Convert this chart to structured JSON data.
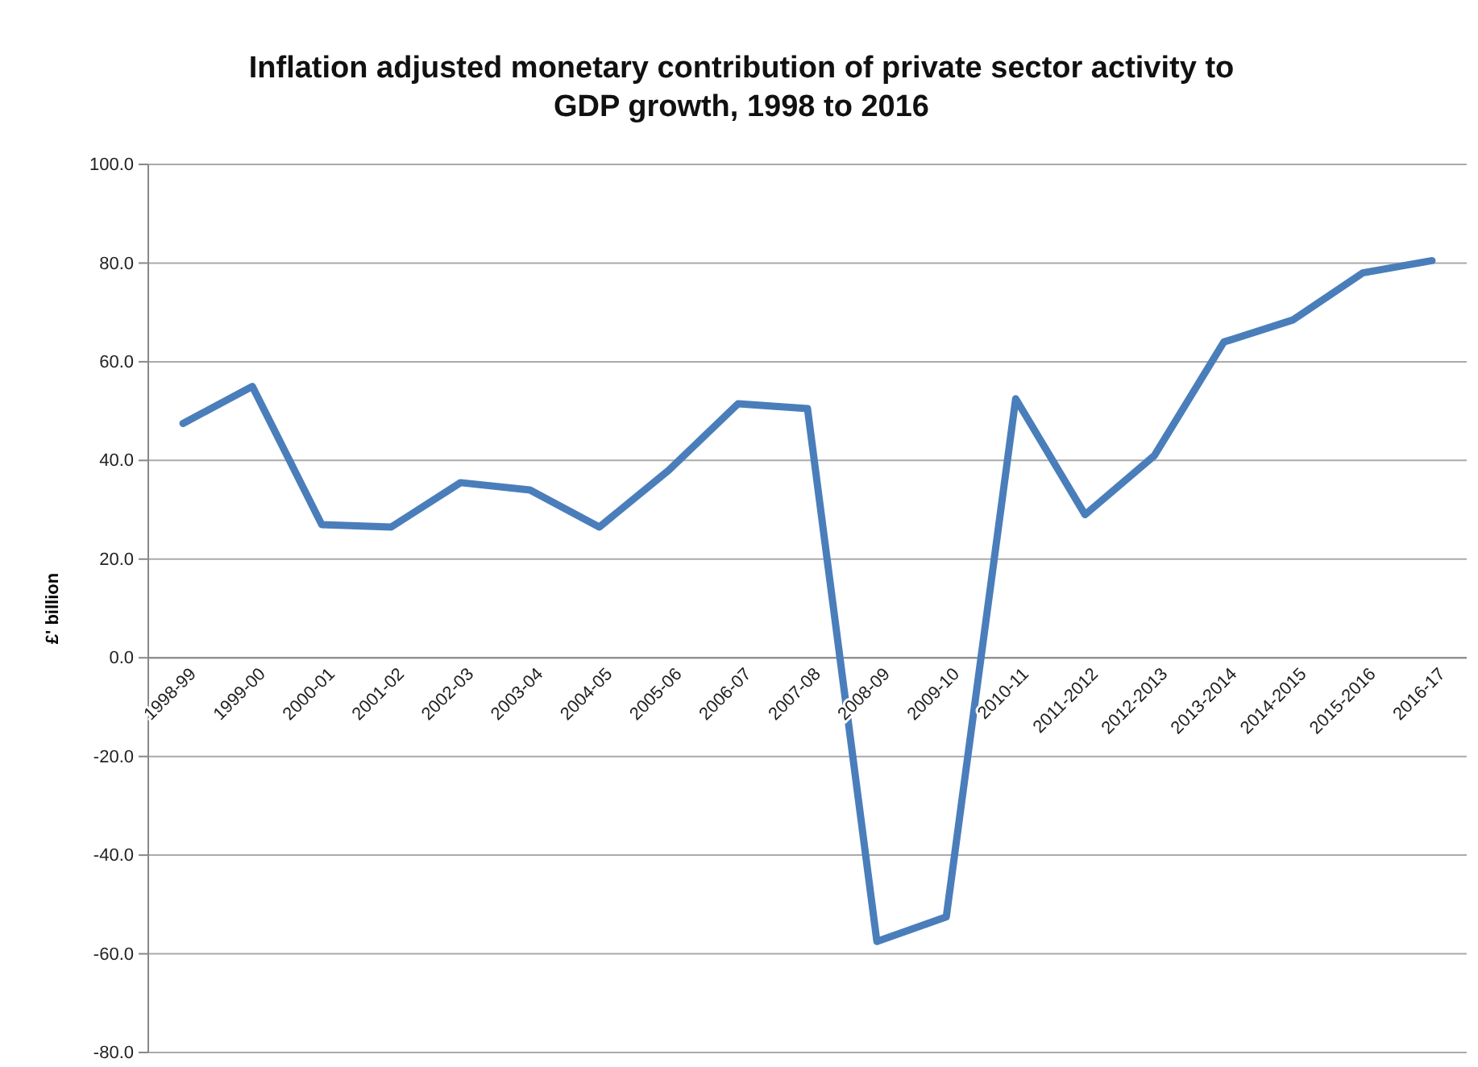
{
  "chart_data": {
    "type": "line",
    "title": "Inflation adjusted monetary contribution of private sector activity to GDP growth, 1998 to 2016",
    "ylabel": "£' billion",
    "categories": [
      "1998-99",
      "1999-00",
      "2000-01",
      "2001-02",
      "2002-03",
      "2003-04",
      "2004-05",
      "2005-06",
      "2006-07",
      "2007-08",
      "2008-09",
      "2009-10",
      "2010-11",
      "2011-2012",
      "2012-2013",
      "2013-2014",
      "2014-2015",
      "2015-2016",
      "2016-17"
    ],
    "series": [
      {
        "color": "#4a7ebb",
        "values": [
          47.5,
          55,
          27,
          26.5,
          35.5,
          34,
          26.5,
          38,
          51.5,
          50.5,
          -57.5,
          -52.5,
          52.5,
          29,
          41,
          64,
          68.5,
          78,
          80.5
        ]
      }
    ],
    "ylim": [
      -80,
      100
    ],
    "yticks": [
      {
        "value": -80,
        "label": "-80.0"
      },
      {
        "value": -60,
        "label": "-60.0"
      },
      {
        "value": -40,
        "label": "-40.0"
      },
      {
        "value": -20,
        "label": "-20.0"
      },
      {
        "value": 0,
        "label": "0.0"
      },
      {
        "value": 20,
        "label": "20.0"
      },
      {
        "value": 40,
        "label": "40.0"
      },
      {
        "value": 60,
        "label": "60.0"
      },
      {
        "value": 80,
        "label": "80.0"
      },
      {
        "value": 100,
        "label": "100.0"
      }
    ],
    "grid": "y",
    "legend": false,
    "marker": "none",
    "line_style": "solid"
  }
}
